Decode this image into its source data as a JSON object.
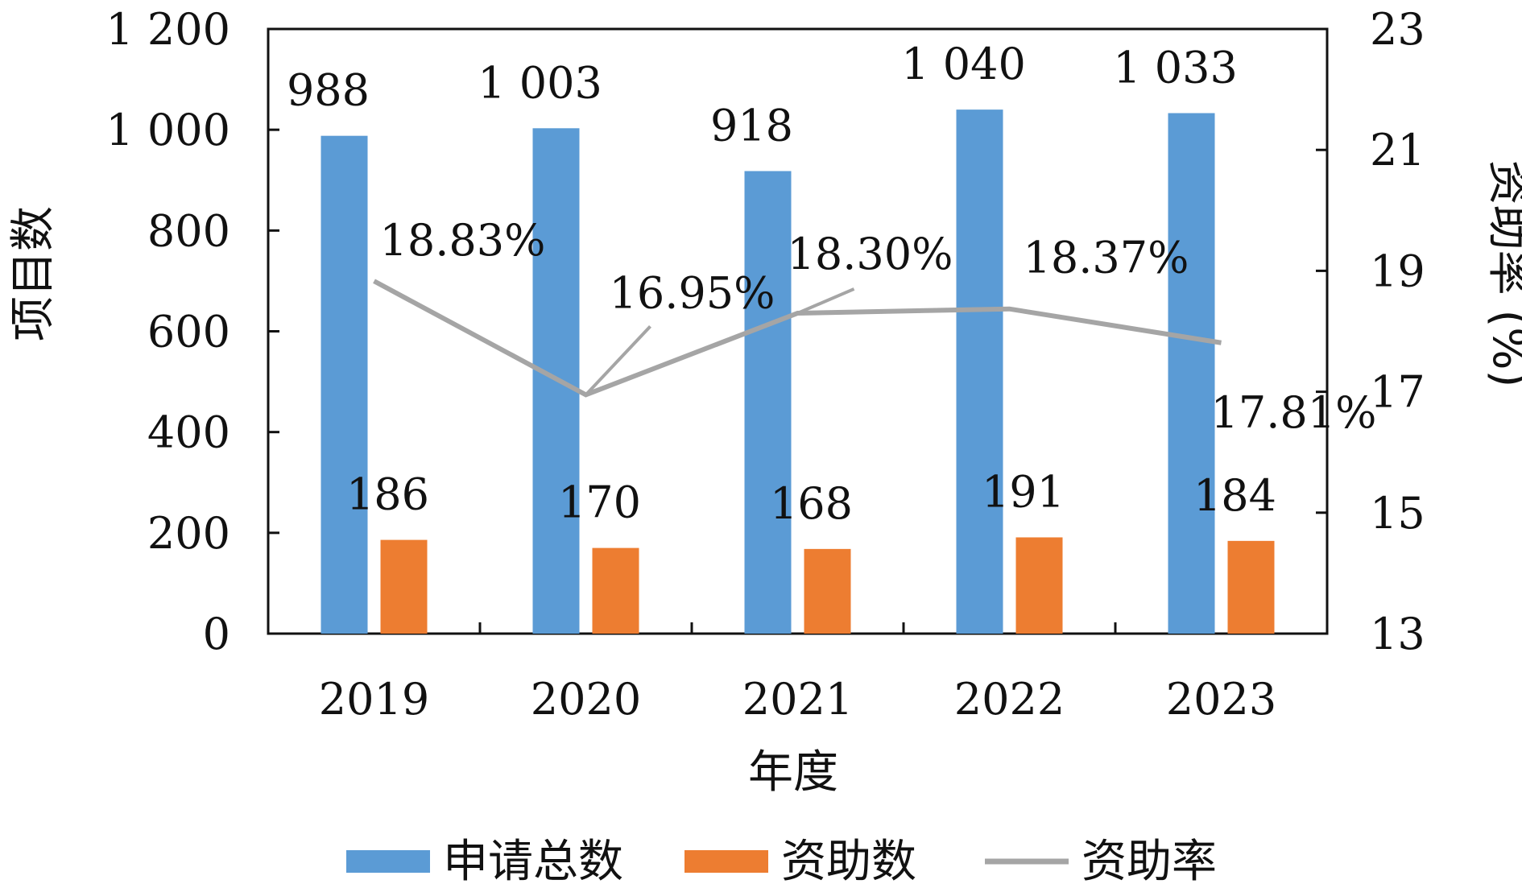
{
  "chart_data": {
    "type": "bar",
    "categories": [
      "2019",
      "2020",
      "2021",
      "2022",
      "2023"
    ],
    "series": [
      {
        "name": "申请总数",
        "kind": "bar",
        "axis": "left",
        "color": "#5b9bd5",
        "values": [
          988,
          1003,
          918,
          1040,
          1033
        ],
        "labels": [
          "988",
          "1 003",
          "918",
          "1 040",
          "1 033"
        ]
      },
      {
        "name": "资助数",
        "kind": "bar",
        "axis": "left",
        "color": "#ed7d31",
        "values": [
          186,
          170,
          168,
          191,
          184
        ],
        "labels": [
          "186",
          "170",
          "168",
          "191",
          "184"
        ]
      },
      {
        "name": "资助率",
        "kind": "line",
        "axis": "right",
        "color": "#a5a5a5",
        "values": [
          18.83,
          16.95,
          18.3,
          18.37,
          17.81
        ],
        "labels": [
          "18.83%",
          "16.95%",
          "18.30%",
          "18.37%",
          "17.81%"
        ]
      }
    ],
    "xlabel": "年度",
    "ylabel": "项目数",
    "y2label": "资助率 (%)",
    "ylim": [
      0,
      1200
    ],
    "y2lim": [
      13,
      23
    ],
    "yticks": [
      0,
      200,
      400,
      600,
      800,
      1000,
      1200
    ],
    "ytick_labels": [
      "0",
      "200",
      "400",
      "600",
      "800",
      "1 000",
      "1 200"
    ],
    "y2ticks": [
      13,
      15,
      17,
      19,
      21,
      23
    ],
    "y2tick_labels": [
      "13",
      "15",
      "17",
      "19",
      "21",
      "23"
    ],
    "grid": false,
    "legend": "bottom"
  }
}
